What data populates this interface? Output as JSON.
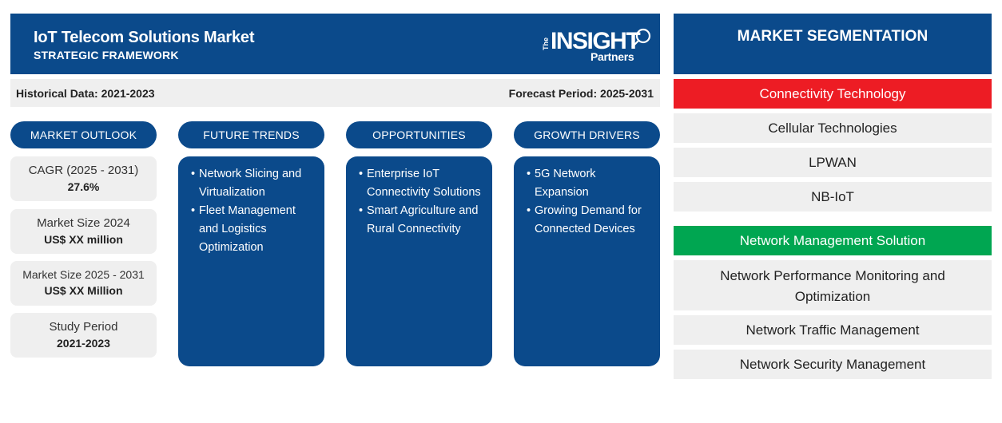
{
  "header": {
    "title": "IoT Telecom Solutions Market",
    "subtitle": "STRATEGIC FRAMEWORK",
    "logo_the": "The",
    "logo_insight": "INSIGHT",
    "logo_partners": "Partners"
  },
  "databar": {
    "historical": "Historical Data: 2021-2023",
    "forecast": "Forecast Period: 2025-2031"
  },
  "columns": {
    "outlook": "MARKET OUTLOOK",
    "trends": "FUTURE TRENDS",
    "opportunities": "OPPORTUNITIES",
    "drivers": "GROWTH DRIVERS"
  },
  "outlook": [
    {
      "label": "CAGR (2025 - 2031)",
      "value": "27.6%"
    },
    {
      "label": "Market Size 2024",
      "value": "US$ XX million"
    },
    {
      "label": "Market Size 2025 - 2031",
      "value": "US$ XX Million"
    },
    {
      "label": "Study Period",
      "value": "2021-2023"
    }
  ],
  "trends": [
    "Network Slicing and Virtualization",
    "Fleet Management and Logistics Optimization"
  ],
  "opportunities": [
    "Enterprise IoT Connectivity Solutions",
    "Smart Agriculture and Rural Connectivity"
  ],
  "drivers": [
    "5G Network Expansion",
    "Growing Demand for Connected Devices"
  ],
  "segmentation": {
    "title": "MARKET SEGMENTATION",
    "groups": [
      {
        "name": "Connectivity Technology",
        "color": "#ed1c24",
        "items": [
          "Cellular Technologies",
          "LPWAN",
          "NB-IoT"
        ]
      },
      {
        "name": "Network Management Solution",
        "color": "#00a651",
        "items": [
          "Network Performance Monitoring and Optimization",
          "Network Traffic Management",
          "Network Security Management"
        ]
      }
    ]
  },
  "colors": {
    "primary": "#0b4a8b",
    "panel": "#efefef"
  }
}
